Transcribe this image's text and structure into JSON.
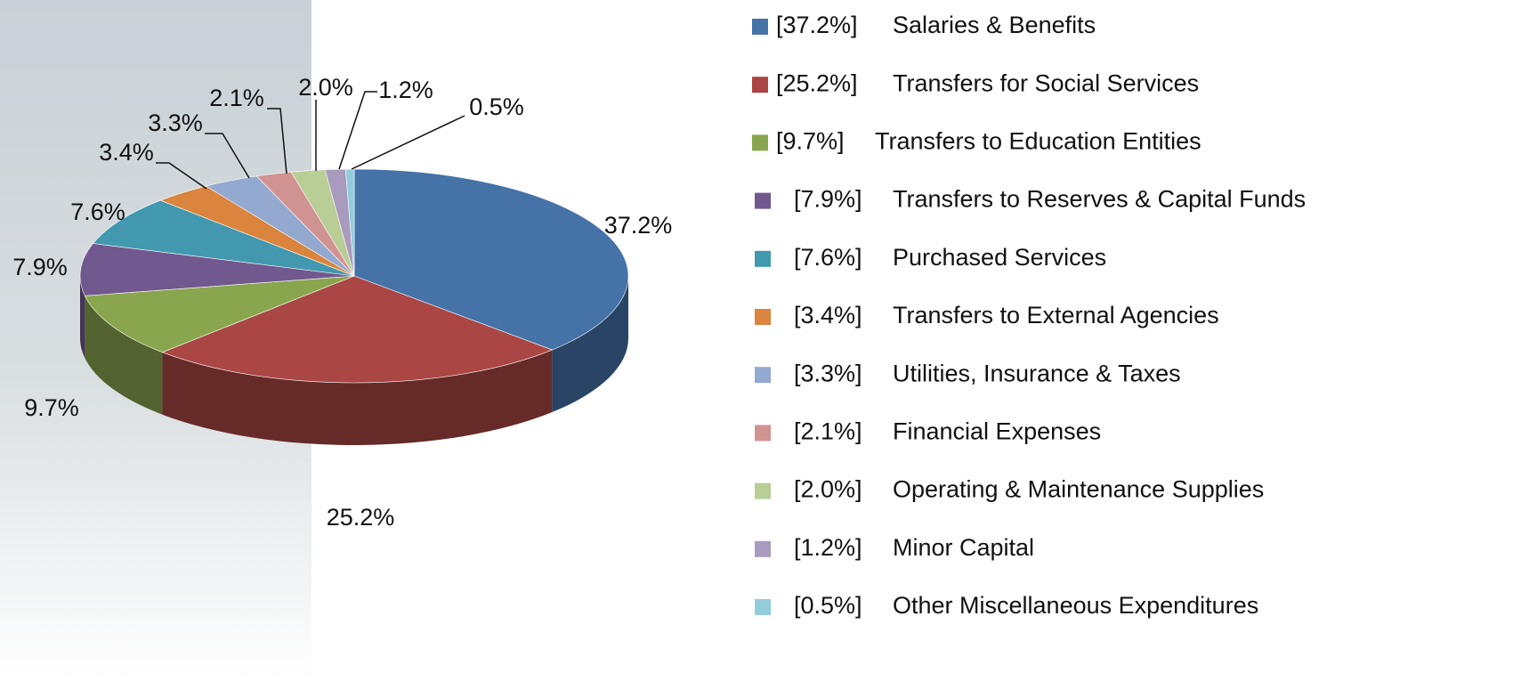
{
  "chart_data": {
    "type": "pie",
    "categories": [
      "Salaries & Benefits",
      "Transfers for Social Services",
      "Transfers to Education Entities",
      "Transfers to Reserves & Capital Funds",
      "Purchased Services",
      "Transfers to External Agencies",
      "Utilities, Insurance & Taxes",
      "Financial Expenses",
      "Operating & Maintenance Supplies",
      "Minor Capital",
      "Other Miscellaneous Expenditures"
    ],
    "values": [
      37.2,
      25.2,
      9.7,
      7.9,
      7.6,
      3.4,
      3.3,
      2.1,
      2.0,
      1.2,
      0.5
    ],
    "value_labels": [
      "37.2%",
      "25.2%",
      "9.7%",
      "7.9%",
      "7.6%",
      "3.4%",
      "3.3%",
      "2.1%",
      "2.0%",
      "1.2%",
      "0.5%"
    ],
    "legend_labels": [
      "[37.2%]",
      "[25.2%]",
      "[9.7%]",
      "[7.9%]",
      "[7.6%]",
      "[3.4%]",
      "[3.3%]",
      "[2.1%]",
      "[2.0%]",
      "[1.2%]",
      "[0.5%]"
    ],
    "colors": [
      "#4572a7",
      "#aa4643",
      "#89a54e",
      "#71588f",
      "#4198af",
      "#db843d",
      "#93a9cf",
      "#d19392",
      "#b9cd96",
      "#a99bbd",
      "#92cddc"
    ],
    "legend": "right"
  }
}
